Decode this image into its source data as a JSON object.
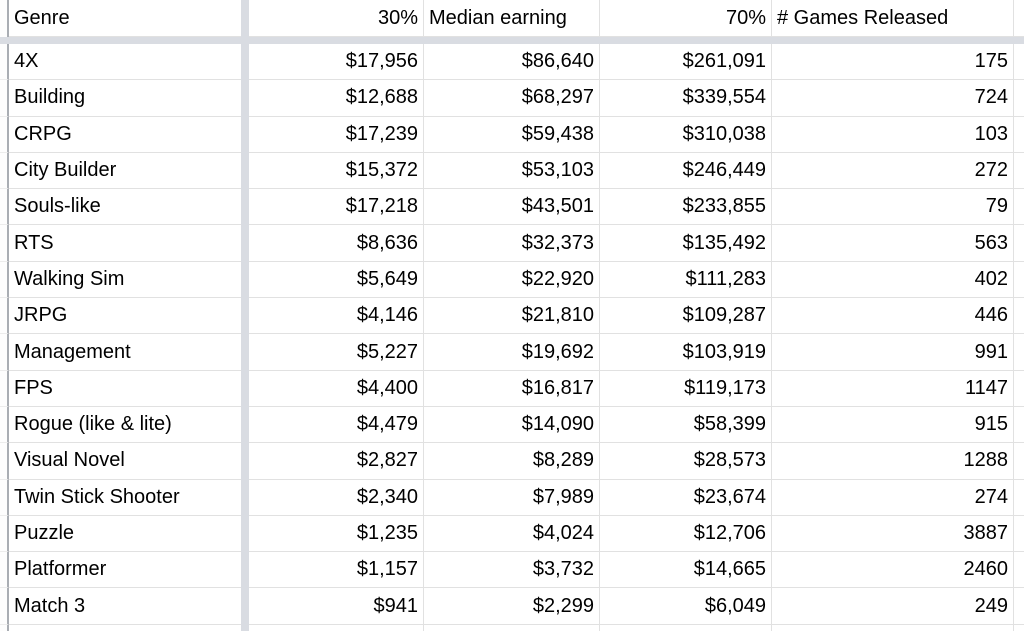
{
  "table": {
    "headers": {
      "genre": "Genre",
      "p30": "30%",
      "median": "Median earning",
      "p70": "70%",
      "games": "# Games Released"
    },
    "rows": [
      {
        "genre": "4X",
        "p30": "$17,956",
        "median": "$86,640",
        "p70": "$261,091",
        "games": "175"
      },
      {
        "genre": "Building",
        "p30": "$12,688",
        "median": "$68,297",
        "p70": "$339,554",
        "games": "724"
      },
      {
        "genre": "CRPG",
        "p30": "$17,239",
        "median": "$59,438",
        "p70": "$310,038",
        "games": "103"
      },
      {
        "genre": "City Builder",
        "p30": "$15,372",
        "median": "$53,103",
        "p70": "$246,449",
        "games": "272"
      },
      {
        "genre": "Souls-like",
        "p30": "$17,218",
        "median": "$43,501",
        "p70": "$233,855",
        "games": "79"
      },
      {
        "genre": "RTS",
        "p30": "$8,636",
        "median": "$32,373",
        "p70": "$135,492",
        "games": "563"
      },
      {
        "genre": "Walking Sim",
        "p30": "$5,649",
        "median": "$22,920",
        "p70": "$111,283",
        "games": "402"
      },
      {
        "genre": "JRPG",
        "p30": "$4,146",
        "median": "$21,810",
        "p70": "$109,287",
        "games": "446"
      },
      {
        "genre": "Management",
        "p30": "$5,227",
        "median": "$19,692",
        "p70": "$103,919",
        "games": "991"
      },
      {
        "genre": "FPS",
        "p30": "$4,400",
        "median": "$16,817",
        "p70": "$119,173",
        "games": "1147"
      },
      {
        "genre": "Rogue (like & lite)",
        "p30": "$4,479",
        "median": "$14,090",
        "p70": "$58,399",
        "games": "915"
      },
      {
        "genre": "Visual Novel",
        "p30": "$2,827",
        "median": "$8,289",
        "p70": "$28,573",
        "games": "1288"
      },
      {
        "genre": "Twin Stick Shooter",
        "p30": "$2,340",
        "median": "$7,989",
        "p70": "$23,674",
        "games": "274"
      },
      {
        "genre": "Puzzle",
        "p30": "$1,235",
        "median": "$4,024",
        "p70": "$12,706",
        "games": "3887"
      },
      {
        "genre": "Platformer",
        "p30": "$1,157",
        "median": "$3,732",
        "p70": "$14,665",
        "games": "2460"
      },
      {
        "genre": "Match 3",
        "p30": "$941",
        "median": "$2,299",
        "p70": "$6,049",
        "games": "249"
      }
    ]
  },
  "colors": {
    "text": "#000000",
    "gridline": "#e1e1e1",
    "freeze_divider": "#d9dce2",
    "row_header_border": "#a9adb3"
  }
}
